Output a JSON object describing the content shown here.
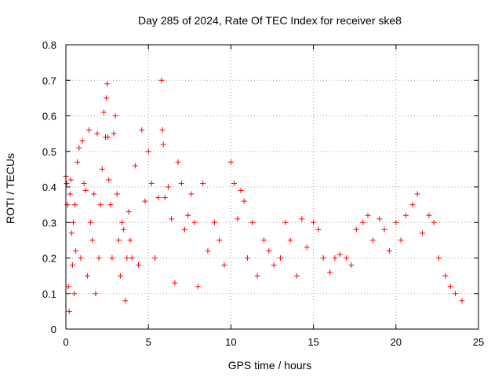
{
  "chart_data": {
    "type": "scatter",
    "title": "Day 285 of 2024, Rate Of TEC Index for receiver ske8",
    "xlabel": "GPS time / hours",
    "ylabel": "ROTI / TECUs",
    "xlim": [
      0,
      25
    ],
    "ylim": [
      0,
      0.8
    ],
    "grid": true,
    "marker": "+",
    "color": "#ff0000",
    "x_ticks": [
      "0",
      "5",
      "10",
      "15",
      "20",
      "25"
    ],
    "y_ticks": [
      "0",
      "0.1",
      "0.2",
      "0.3",
      "0.4",
      "0.5",
      "0.6",
      "0.7",
      "0.8"
    ],
    "series": [
      {
        "name": "ROTI",
        "x": [
          0.0,
          0.05,
          0.1,
          0.15,
          0.2,
          0.25,
          0.3,
          0.35,
          0.4,
          0.45,
          0.5,
          0.55,
          0.6,
          0.7,
          0.8,
          0.9,
          1.0,
          1.1,
          1.2,
          1.3,
          1.4,
          1.5,
          1.6,
          1.7,
          1.8,
          1.9,
          2.0,
          2.1,
          2.2,
          2.3,
          2.4,
          2.45,
          2.5,
          2.55,
          2.6,
          2.7,
          2.8,
          2.9,
          3.0,
          3.1,
          3.2,
          3.3,
          3.4,
          3.5,
          3.6,
          3.7,
          3.8,
          3.9,
          4.0,
          4.2,
          4.4,
          4.6,
          4.8,
          5.0,
          5.2,
          5.4,
          5.6,
          5.8,
          5.85,
          5.9,
          6.0,
          6.2,
          6.4,
          6.6,
          6.8,
          7.0,
          7.2,
          7.4,
          7.6,
          7.8,
          8.0,
          8.3,
          8.6,
          9.0,
          9.3,
          9.6,
          10.0,
          10.2,
          10.4,
          10.6,
          10.8,
          11.0,
          11.3,
          11.6,
          12.0,
          12.3,
          12.6,
          13.0,
          13.3,
          13.6,
          14.0,
          14.3,
          14.6,
          15.0,
          15.3,
          15.6,
          16.0,
          16.3,
          16.6,
          17.0,
          17.3,
          17.6,
          18.0,
          18.3,
          18.6,
          19.0,
          19.3,
          19.6,
          20.0,
          20.3,
          20.6,
          21.0,
          21.3,
          21.6,
          22.0,
          22.3,
          22.6,
          23.0,
          23.3,
          23.6,
          24.0
        ],
        "y": [
          0.43,
          0.41,
          0.35,
          0.12,
          0.05,
          0.38,
          0.42,
          0.27,
          0.18,
          0.3,
          0.1,
          0.35,
          0.22,
          0.47,
          0.51,
          0.2,
          0.53,
          0.41,
          0.39,
          0.15,
          0.56,
          0.3,
          0.25,
          0.38,
          0.1,
          0.55,
          0.2,
          0.35,
          0.45,
          0.61,
          0.54,
          0.65,
          0.69,
          0.54,
          0.42,
          0.35,
          0.2,
          0.55,
          0.6,
          0.38,
          0.25,
          0.15,
          0.3,
          0.28,
          0.08,
          0.2,
          0.33,
          0.25,
          0.2,
          0.46,
          0.18,
          0.56,
          0.36,
          0.5,
          0.41,
          0.2,
          0.37,
          0.7,
          0.56,
          0.52,
          0.37,
          0.4,
          0.31,
          0.13,
          0.47,
          0.41,
          0.28,
          0.32,
          0.38,
          0.3,
          0.12,
          0.41,
          0.22,
          0.3,
          0.25,
          0.18,
          0.47,
          0.41,
          0.31,
          0.39,
          0.36,
          0.2,
          0.3,
          0.15,
          0.25,
          0.22,
          0.18,
          0.2,
          0.3,
          0.25,
          0.15,
          0.31,
          0.23,
          0.3,
          0.28,
          0.2,
          0.16,
          0.2,
          0.21,
          0.2,
          0.18,
          0.28,
          0.3,
          0.32,
          0.25,
          0.31,
          0.28,
          0.22,
          0.3,
          0.25,
          0.32,
          0.35,
          0.38,
          0.27,
          0.32,
          0.3,
          0.2,
          0.15,
          0.12,
          0.1,
          0.08
        ]
      }
    ]
  }
}
